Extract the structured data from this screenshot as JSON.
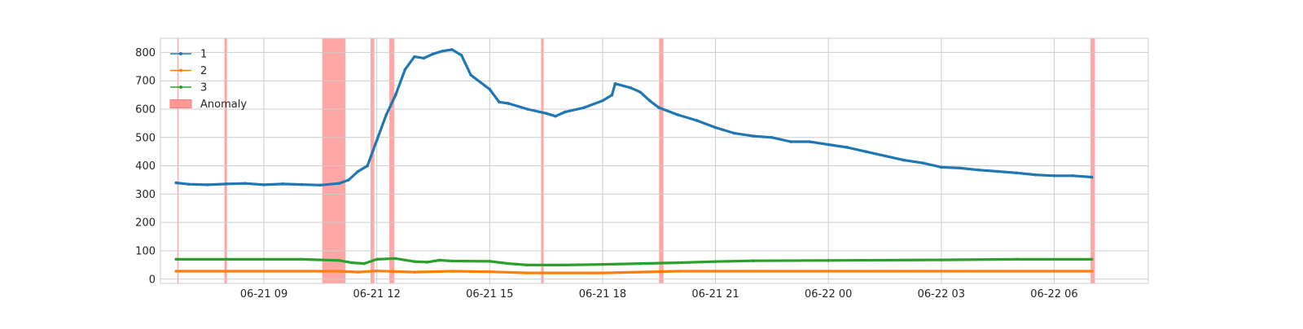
{
  "chart_data": {
    "type": "line",
    "title": "",
    "xlabel": "",
    "ylabel": "",
    "x_axis": {
      "type": "time",
      "range": [
        "06-21 06:15",
        "06-22 08:30"
      ],
      "ticks": [
        {
          "t": "06-21 09:00",
          "label": "06-21 09"
        },
        {
          "t": "06-21 12:00",
          "label": "06-21 12"
        },
        {
          "t": "06-21 15:00",
          "label": "06-21 15"
        },
        {
          "t": "06-21 18:00",
          "label": "06-21 18"
        },
        {
          "t": "06-21 21:00",
          "label": "06-21 21"
        },
        {
          "t": "06-22 00:00",
          "label": "06-22 00"
        },
        {
          "t": "06-22 03:00",
          "label": "06-22 03"
        },
        {
          "t": "06-22 06:00",
          "label": "06-22 06"
        }
      ]
    },
    "y_axis": {
      "range": [
        -15,
        850
      ],
      "ticks": [
        0,
        100,
        200,
        300,
        400,
        500,
        600,
        700,
        800
      ]
    },
    "grid": true,
    "legend": {
      "placement": "top-left",
      "entries": [
        {
          "label": "1",
          "kind": "line",
          "color": "#1f77b4"
        },
        {
          "label": "2",
          "kind": "line",
          "color": "#ff7f0e"
        },
        {
          "label": "3",
          "kind": "line",
          "color": "#2ca02c"
        },
        {
          "label": "Anomaly",
          "kind": "band",
          "color": "#ff9896"
        }
      ]
    },
    "series": [
      {
        "name": "1",
        "color": "#1f77b4",
        "points": [
          [
            "06-21 06:40",
            340
          ],
          [
            "06-21 07:00",
            335
          ],
          [
            "06-21 07:30",
            333
          ],
          [
            "06-21 08:00",
            336
          ],
          [
            "06-21 08:30",
            338
          ],
          [
            "06-21 09:00",
            333
          ],
          [
            "06-21 09:30",
            336
          ],
          [
            "06-21 10:00",
            334
          ],
          [
            "06-21 10:30",
            332
          ],
          [
            "06-21 11:00",
            338
          ],
          [
            "06-21 11:15",
            350
          ],
          [
            "06-21 11:30",
            380
          ],
          [
            "06-21 11:45",
            400
          ],
          [
            "06-21 12:00",
            490
          ],
          [
            "06-21 12:15",
            580
          ],
          [
            "06-21 12:30",
            650
          ],
          [
            "06-21 12:45",
            740
          ],
          [
            "06-21 13:00",
            785
          ],
          [
            "06-21 13:15",
            780
          ],
          [
            "06-21 13:30",
            795
          ],
          [
            "06-21 13:45",
            805
          ],
          [
            "06-21 14:00",
            810
          ],
          [
            "06-21 14:15",
            790
          ],
          [
            "06-21 14:30",
            720
          ],
          [
            "06-21 15:00",
            670
          ],
          [
            "06-21 15:15",
            625
          ],
          [
            "06-21 15:30",
            620
          ],
          [
            "06-21 16:00",
            600
          ],
          [
            "06-21 16:30",
            585
          ],
          [
            "06-21 16:45",
            575
          ],
          [
            "06-21 17:00",
            590
          ],
          [
            "06-21 17:30",
            605
          ],
          [
            "06-21 18:00",
            630
          ],
          [
            "06-21 18:15",
            650
          ],
          [
            "06-21 18:20",
            690
          ],
          [
            "06-21 18:45",
            675
          ],
          [
            "06-21 19:00",
            660
          ],
          [
            "06-21 19:15",
            630
          ],
          [
            "06-21 19:30",
            605
          ],
          [
            "06-21 20:00",
            580
          ],
          [
            "06-21 20:30",
            560
          ],
          [
            "06-21 21:00",
            535
          ],
          [
            "06-21 21:30",
            515
          ],
          [
            "06-21 22:00",
            505
          ],
          [
            "06-21 22:30",
            500
          ],
          [
            "06-21 23:00",
            485
          ],
          [
            "06-21 23:30",
            485
          ],
          [
            "06-22 00:00",
            475
          ],
          [
            "06-22 00:30",
            465
          ],
          [
            "06-22 01:00",
            450
          ],
          [
            "06-22 01:30",
            435
          ],
          [
            "06-22 02:00",
            420
          ],
          [
            "06-22 02:30",
            410
          ],
          [
            "06-22 03:00",
            395
          ],
          [
            "06-22 03:30",
            392
          ],
          [
            "06-22 04:00",
            385
          ],
          [
            "06-22 04:30",
            380
          ],
          [
            "06-22 05:00",
            375
          ],
          [
            "06-22 05:30",
            368
          ],
          [
            "06-22 06:00",
            365
          ],
          [
            "06-22 06:30",
            365
          ],
          [
            "06-22 07:00",
            360
          ]
        ]
      },
      {
        "name": "2",
        "color": "#ff7f0e",
        "points": [
          [
            "06-21 06:40",
            28
          ],
          [
            "06-21 09:00",
            28
          ],
          [
            "06-21 11:00",
            28
          ],
          [
            "06-21 11:30",
            25
          ],
          [
            "06-21 12:00",
            29
          ],
          [
            "06-21 13:00",
            25
          ],
          [
            "06-21 14:00",
            28
          ],
          [
            "06-21 15:00",
            26
          ],
          [
            "06-21 16:00",
            22
          ],
          [
            "06-21 18:00",
            22
          ],
          [
            "06-21 19:00",
            25
          ],
          [
            "06-21 20:00",
            28
          ],
          [
            "06-22 00:00",
            28
          ],
          [
            "06-22 03:00",
            28
          ],
          [
            "06-22 07:00",
            28
          ]
        ]
      },
      {
        "name": "3",
        "color": "#2ca02c",
        "points": [
          [
            "06-21 06:40",
            70
          ],
          [
            "06-21 08:00",
            70
          ],
          [
            "06-21 10:00",
            70
          ],
          [
            "06-21 11:00",
            66
          ],
          [
            "06-21 11:20",
            58
          ],
          [
            "06-21 11:40",
            55
          ],
          [
            "06-21 12:00",
            70
          ],
          [
            "06-21 12:30",
            73
          ],
          [
            "06-21 13:00",
            62
          ],
          [
            "06-21 13:20",
            60
          ],
          [
            "06-21 13:40",
            67
          ],
          [
            "06-21 14:00",
            64
          ],
          [
            "06-21 15:00",
            63
          ],
          [
            "06-21 15:30",
            55
          ],
          [
            "06-21 16:00",
            50
          ],
          [
            "06-21 17:00",
            50
          ],
          [
            "06-21 18:00",
            52
          ],
          [
            "06-21 19:00",
            55
          ],
          [
            "06-21 20:00",
            58
          ],
          [
            "06-21 21:00",
            62
          ],
          [
            "06-21 22:00",
            65
          ],
          [
            "06-22 00:00",
            66
          ],
          [
            "06-22 03:00",
            68
          ],
          [
            "06-22 05:00",
            70
          ],
          [
            "06-22 07:00",
            70
          ]
        ]
      }
    ],
    "anomalies": [
      [
        "06-21 06:42",
        "06-21 06:44"
      ],
      [
        "06-21 07:57",
        "06-21 08:01"
      ],
      [
        "06-21 10:33",
        "06-21 11:10"
      ],
      [
        "06-21 11:50",
        "06-21 11:56"
      ],
      [
        "06-21 12:20",
        "06-21 12:28"
      ],
      [
        "06-21 16:22",
        "06-21 16:26"
      ],
      [
        "06-21 19:30",
        "06-21 19:37"
      ],
      [
        "06-22 06:58",
        "06-22 07:05"
      ]
    ]
  }
}
